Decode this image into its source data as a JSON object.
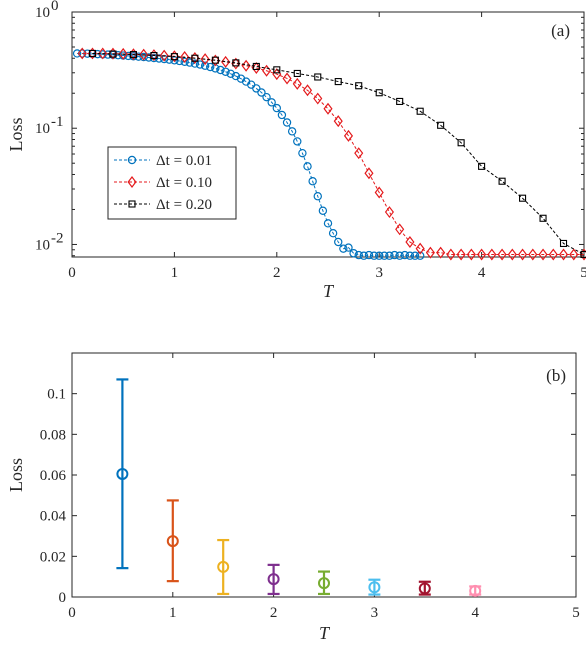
{
  "chart_data": [
    {
      "type": "line",
      "panel_label": "(a)",
      "xlabel": "T",
      "ylabel": "Loss",
      "xlim": [
        0,
        5
      ],
      "ylim": [
        0.0078,
        1
      ],
      "yscale": "log",
      "xticks": [
        "0",
        "1",
        "2",
        "3",
        "4",
        "5"
      ],
      "yticks": [
        {
          "value": 1,
          "base": "10",
          "exp": "0"
        },
        {
          "value": 0.1,
          "base": "10",
          "exp": "-1"
        },
        {
          "value": 0.01,
          "base": "10",
          "exp": "-2"
        }
      ],
      "legend_position": "center-left",
      "series": [
        {
          "name": "Δt = 0.01",
          "legend_label": "Δt = 0.01",
          "color": "#0072BD",
          "marker": "circle",
          "x": [
            0.05,
            0.1,
            0.15,
            0.2,
            0.25,
            0.3,
            0.35,
            0.4,
            0.45,
            0.5,
            0.55,
            0.6,
            0.65,
            0.7,
            0.75,
            0.8,
            0.85,
            0.9,
            0.95,
            1.0,
            1.05,
            1.1,
            1.15,
            1.2,
            1.25,
            1.3,
            1.35,
            1.4,
            1.45,
            1.5,
            1.55,
            1.6,
            1.65,
            1.7,
            1.75,
            1.8,
            1.85,
            1.9,
            1.95,
            2.0,
            2.05,
            2.1,
            2.15,
            2.2,
            2.25,
            2.3,
            2.35,
            2.4,
            2.45,
            2.5,
            2.55,
            2.6,
            2.65,
            2.7,
            2.75,
            2.8,
            2.85,
            2.9,
            2.95,
            3.0,
            3.05,
            3.1,
            3.15,
            3.2,
            3.25,
            3.3,
            3.35,
            3.4
          ],
          "y": [
            0.44,
            0.44,
            0.438,
            0.436,
            0.434,
            0.432,
            0.43,
            0.428,
            0.425,
            0.422,
            0.419,
            0.416,
            0.413,
            0.41,
            0.406,
            0.402,
            0.398,
            0.394,
            0.389,
            0.384,
            0.379,
            0.373,
            0.367,
            0.36,
            0.353,
            0.345,
            0.336,
            0.327,
            0.317,
            0.306,
            0.294,
            0.281,
            0.267,
            0.252,
            0.237,
            0.22,
            0.203,
            0.185,
            0.167,
            0.149,
            0.13,
            0.112,
            0.094,
            0.077,
            0.061,
            0.047,
            0.035,
            0.026,
            0.0195,
            0.0152,
            0.0125,
            0.0105,
            0.0092,
            0.0094,
            0.0084,
            0.0081,
            0.008,
            0.0081,
            0.008,
            0.008,
            0.008,
            0.008,
            0.0081,
            0.008,
            0.0081,
            0.008,
            0.008,
            0.008
          ]
        },
        {
          "name": "Δt = 0.10",
          "legend_label": "Δt = 0.10",
          "color": "#E41A1C",
          "marker": "diamond",
          "x": [
            0.1,
            0.2,
            0.3,
            0.4,
            0.5,
            0.6,
            0.7,
            0.8,
            0.9,
            1.0,
            1.1,
            1.2,
            1.3,
            1.4,
            1.5,
            1.6,
            1.7,
            1.8,
            1.9,
            2.0,
            2.1,
            2.2,
            2.3,
            2.4,
            2.5,
            2.6,
            2.7,
            2.8,
            2.9,
            3.0,
            3.1,
            3.2,
            3.3,
            3.4,
            3.5,
            3.6,
            3.7,
            3.8,
            3.9,
            4.0,
            4.1,
            4.2,
            4.3,
            4.4,
            4.5,
            4.6,
            4.7,
            4.8,
            4.9,
            5.0
          ],
          "y": [
            0.44,
            0.44,
            0.44,
            0.438,
            0.436,
            0.433,
            0.43,
            0.426,
            0.421,
            0.416,
            0.41,
            0.402,
            0.393,
            0.383,
            0.372,
            0.36,
            0.345,
            0.33,
            0.312,
            0.292,
            0.268,
            0.241,
            0.212,
            0.18,
            0.147,
            0.115,
            0.086,
            0.061,
            0.041,
            0.028,
            0.019,
            0.0135,
            0.0105,
            0.0092,
            0.0085,
            0.0085,
            0.0082,
            0.0082,
            0.0082,
            0.0082,
            0.0082,
            0.0082,
            0.0082,
            0.0082,
            0.0082,
            0.0082,
            0.0082,
            0.0082,
            0.0082,
            0.0082
          ]
        },
        {
          "name": "Δt = 0.20",
          "legend_label": "Δt = 0.20",
          "color": "#000000",
          "marker": "square",
          "x": [
            0.2,
            0.4,
            0.6,
            0.8,
            1.0,
            1.2,
            1.4,
            1.6,
            1.8,
            2.0,
            2.2,
            2.4,
            2.6,
            2.8,
            3.0,
            3.2,
            3.4,
            3.6,
            3.8,
            4.0,
            4.2,
            4.4,
            4.6,
            4.8,
            5.0
          ],
          "y": [
            0.44,
            0.435,
            0.43,
            0.422,
            0.413,
            0.4,
            0.385,
            0.365,
            0.34,
            0.318,
            0.296,
            0.276,
            0.252,
            0.232,
            0.202,
            0.17,
            0.14,
            0.106,
            0.075,
            0.047,
            0.035,
            0.025,
            0.0168,
            0.0102,
            0.0082
          ]
        }
      ]
    },
    {
      "type": "errorbar",
      "panel_label": "(b)",
      "xlabel": "T",
      "ylabel": "Loss",
      "xlim": [
        0,
        5
      ],
      "ylim": [
        0,
        0.12
      ],
      "xticks": [
        "0",
        "1",
        "2",
        "3",
        "4",
        "5"
      ],
      "yticks": [
        "0",
        "0.02",
        "0.04",
        "0.06",
        "0.08",
        "0.1"
      ],
      "points": [
        {
          "x": 0.5,
          "mean": 0.0605,
          "low": 0.0142,
          "high": 0.107,
          "color": "#0072BD"
        },
        {
          "x": 1.0,
          "mean": 0.0275,
          "low": 0.0078,
          "high": 0.0475,
          "color": "#D95319"
        },
        {
          "x": 1.5,
          "mean": 0.0148,
          "low": 0.0015,
          "high": 0.028,
          "color": "#EDB120"
        },
        {
          "x": 2.0,
          "mean": 0.0088,
          "low": 0.0015,
          "high": 0.0158,
          "color": "#7E2F8E"
        },
        {
          "x": 2.5,
          "mean": 0.0068,
          "low": 0.0015,
          "high": 0.0125,
          "color": "#77AC30"
        },
        {
          "x": 3.0,
          "mean": 0.0048,
          "low": 0.0012,
          "high": 0.0085,
          "color": "#4DBEEE"
        },
        {
          "x": 3.5,
          "mean": 0.0042,
          "low": 0.0012,
          "high": 0.0075,
          "color": "#A2142F"
        },
        {
          "x": 4.0,
          "mean": 0.003,
          "low": 0.0012,
          "high": 0.0052,
          "color": "#FF8FB0"
        }
      ]
    }
  ]
}
